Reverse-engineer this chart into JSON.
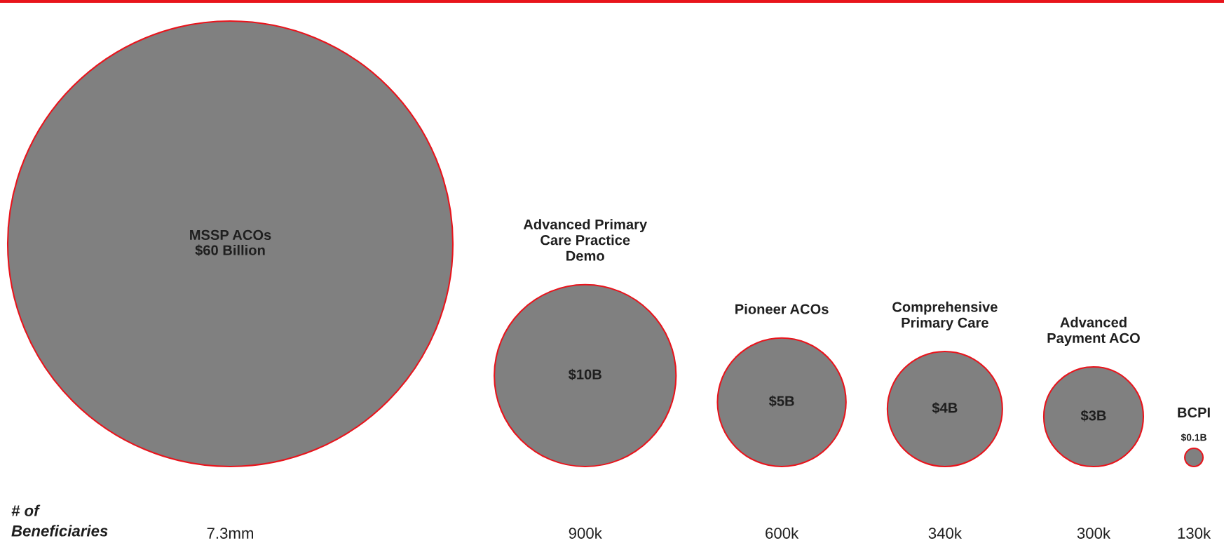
{
  "chart_data": {
    "type": "other",
    "categories": [
      "MSSP ACOs",
      "Advanced Primary\nCare Practice\nDemo",
      "Pioneer ACOs",
      "Comprehensive\nPrimary Care",
      "Advanced\nPayment ACO",
      "BCPI"
    ],
    "values": [
      60,
      10,
      5,
      4,
      3,
      0.1
    ],
    "value_labels": [
      "$60 Billion",
      "$10B",
      "$5B",
      "$4B",
      "$3B",
      "$0.1B"
    ],
    "color": "#808080",
    "annotations": [
      "# of\nBeneficiaries",
      {
        "text": "7.3mm",
        "x": "MSSP ACOs"
      },
      {
        "text": "900k",
        "x": "Advanced Primary\nCare Practice\nDemo"
      },
      {
        "text": "600k",
        "x": "Pioneer ACOs"
      },
      {
        "text": "340k",
        "x": "Comprehensive\nPrimary Care"
      },
      {
        "text": "300k",
        "x": "Advanced\nPayment ACO"
      },
      {
        "text": "130k",
        "x": "BCPI"
      }
    ]
  }
}
